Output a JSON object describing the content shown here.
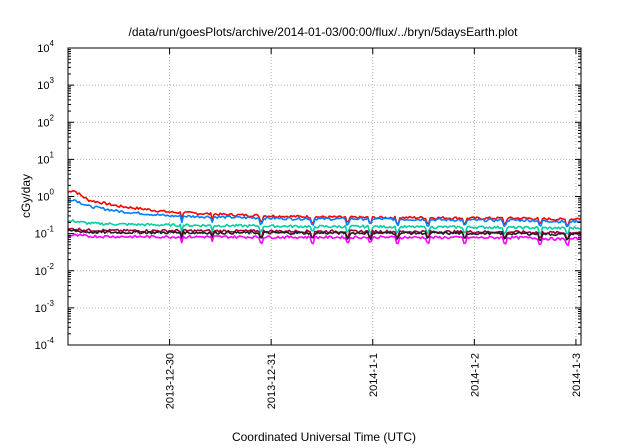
{
  "chart_data": {
    "type": "line",
    "title": "/data/run/goesPlots/archive/2014-01-03/00:00/flux/../bryn/5daysEarth.plot",
    "xlabel": "Coordinated Universal Time (UTC)",
    "ylabel": "cGy/day",
    "yscale": "log",
    "ylim": [
      0.0001,
      10000
    ],
    "y_ticks": [
      {
        "base": "10",
        "exp": "-4",
        "value": 0.0001
      },
      {
        "base": "10",
        "exp": "-3",
        "value": 0.001
      },
      {
        "base": "10",
        "exp": "-2",
        "value": 0.01
      },
      {
        "base": "10",
        "exp": "-1",
        "value": 0.1
      },
      {
        "base": "10",
        "exp": "0",
        "value": 1
      },
      {
        "base": "10",
        "exp": "1",
        "value": 10
      },
      {
        "base": "10",
        "exp": "2",
        "value": 100
      },
      {
        "base": "10",
        "exp": "3",
        "value": 1000
      },
      {
        "base": "10",
        "exp": "4",
        "value": 10000
      }
    ],
    "x_ticks": [
      {
        "label": "2013-12-30",
        "pos": 1.0
      },
      {
        "label": "2013-12-31",
        "pos": 2.0
      },
      {
        "label": "2014-1-1",
        "pos": 3.0
      },
      {
        "label": "2014-1-2",
        "pos": 4.0
      },
      {
        "label": "2014-1-3",
        "pos": 5.0
      }
    ],
    "xlim": [
      0,
      5.05
    ],
    "grid": true,
    "series": [
      {
        "color": "#ff0000",
        "x": [
          0,
          0.05,
          0.2,
          0.5,
          1.0,
          1.5,
          2.0,
          2.5,
          3.0,
          3.5,
          4.0,
          4.5,
          4.9,
          5.05
        ],
        "y": [
          1.3,
          1.5,
          0.8,
          0.55,
          0.38,
          0.33,
          0.3,
          0.28,
          0.27,
          0.27,
          0.26,
          0.26,
          0.24,
          0.26
        ]
      },
      {
        "color": "#0080ff",
        "x": [
          0,
          0.05,
          0.2,
          0.5,
          1.0,
          1.5,
          2.0,
          2.5,
          3.0,
          3.5,
          4.0,
          4.5,
          4.9,
          5.05
        ],
        "y": [
          0.75,
          0.85,
          0.55,
          0.4,
          0.3,
          0.28,
          0.26,
          0.25,
          0.25,
          0.24,
          0.23,
          0.23,
          0.21,
          0.22
        ]
      },
      {
        "color": "#00d0a0",
        "x": [
          0,
          0.05,
          0.2,
          0.5,
          1.0,
          1.5,
          2.0,
          2.5,
          3.0,
          3.5,
          4.0,
          4.5,
          4.9,
          5.05
        ],
        "y": [
          0.21,
          0.22,
          0.19,
          0.18,
          0.17,
          0.165,
          0.16,
          0.155,
          0.155,
          0.15,
          0.15,
          0.145,
          0.14,
          0.145
        ]
      },
      {
        "color": "#a00040",
        "x": [
          0,
          0.05,
          0.2,
          0.5,
          1.0,
          1.5,
          2.0,
          2.5,
          3.0,
          3.5,
          4.0,
          4.5,
          4.9,
          5.05
        ],
        "y": [
          0.13,
          0.135,
          0.125,
          0.12,
          0.12,
          0.118,
          0.117,
          0.115,
          0.115,
          0.113,
          0.112,
          0.11,
          0.105,
          0.11
        ]
      },
      {
        "color": "#202020",
        "x": [
          0,
          0.05,
          0.2,
          0.5,
          1.0,
          1.5,
          2.0,
          2.5,
          3.0,
          3.5,
          4.0,
          4.5,
          4.9,
          5.05
        ],
        "y": [
          0.115,
          0.12,
          0.11,
          0.108,
          0.107,
          0.106,
          0.105,
          0.104,
          0.104,
          0.103,
          0.102,
          0.1,
          0.095,
          0.1
        ]
      },
      {
        "color": "#ff00ff",
        "x": [
          0,
          0.05,
          0.2,
          0.5,
          1.0,
          1.5,
          2.0,
          2.5,
          3.0,
          3.5,
          4.0,
          4.5,
          4.9,
          5.05
        ],
        "y": [
          0.085,
          0.09,
          0.085,
          0.083,
          0.082,
          0.082,
          0.081,
          0.08,
          0.08,
          0.079,
          0.078,
          0.078,
          0.07,
          0.075
        ]
      }
    ]
  }
}
